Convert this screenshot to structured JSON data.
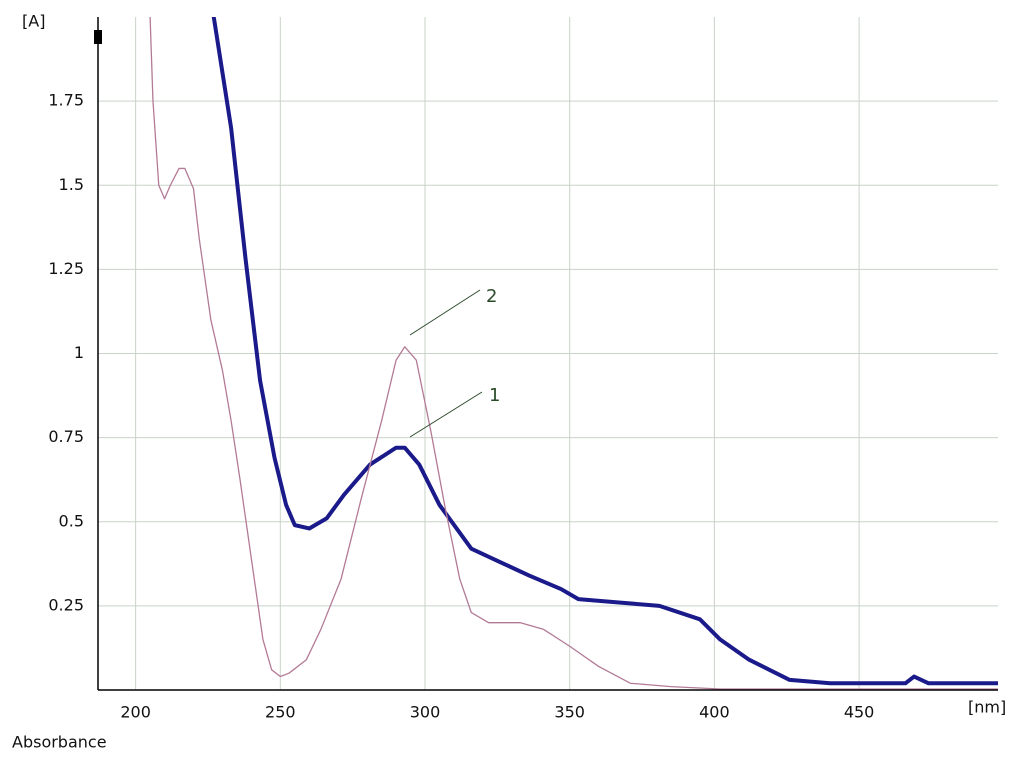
{
  "chart_data": {
    "type": "line",
    "y_label": "[A]",
    "x_label": "[nm]",
    "footer": "Absorbance",
    "annotations": [
      "2",
      "1"
    ],
    "xlim": [
      187,
      498
    ],
    "xticks": [
      200,
      250,
      300,
      350,
      400,
      450
    ],
    "ylim": [
      0,
      2
    ],
    "yticks": [
      0.25,
      0.5,
      0.75,
      1,
      1.25,
      1.5,
      1.75
    ],
    "grid": true,
    "series": [
      {
        "color": "#1a1a8a",
        "width": 4,
        "x": [
          227,
          233,
          238,
          243,
          248,
          252,
          255,
          260,
          266,
          272,
          281,
          290,
          293,
          298,
          305,
          316,
          326,
          336,
          347,
          353,
          367,
          381,
          395,
          402,
          412,
          426,
          440,
          466,
          469,
          474,
          498
        ],
        "values": [
          2.0,
          1.67,
          1.28,
          0.92,
          0.69,
          0.55,
          0.49,
          0.48,
          0.51,
          0.58,
          0.67,
          0.72,
          0.72,
          0.67,
          0.55,
          0.42,
          0.38,
          0.34,
          0.3,
          0.27,
          0.26,
          0.25,
          0.21,
          0.15,
          0.09,
          0.03,
          0.02,
          0.02,
          0.04,
          0.02,
          0.02
        ]
      },
      {
        "color": "#b37a96",
        "width": 1.3,
        "x": [
          205,
          206,
          208,
          210,
          212,
          215,
          217,
          220,
          222,
          226,
          230,
          233,
          236,
          240,
          244,
          247,
          250,
          253,
          259,
          264,
          271,
          278,
          285,
          290,
          293,
          297,
          302,
          307,
          312,
          316,
          322,
          333,
          341,
          350,
          360,
          371,
          385,
          402,
          498
        ],
        "values": [
          2.0,
          1.75,
          1.5,
          1.46,
          1.5,
          1.55,
          1.55,
          1.49,
          1.34,
          1.1,
          0.95,
          0.8,
          0.63,
          0.39,
          0.15,
          0.06,
          0.04,
          0.05,
          0.09,
          0.18,
          0.33,
          0.57,
          0.8,
          0.98,
          1.02,
          0.98,
          0.77,
          0.54,
          0.33,
          0.23,
          0.2,
          0.2,
          0.18,
          0.13,
          0.07,
          0.02,
          0.01,
          0.003,
          0.003
        ]
      }
    ]
  }
}
